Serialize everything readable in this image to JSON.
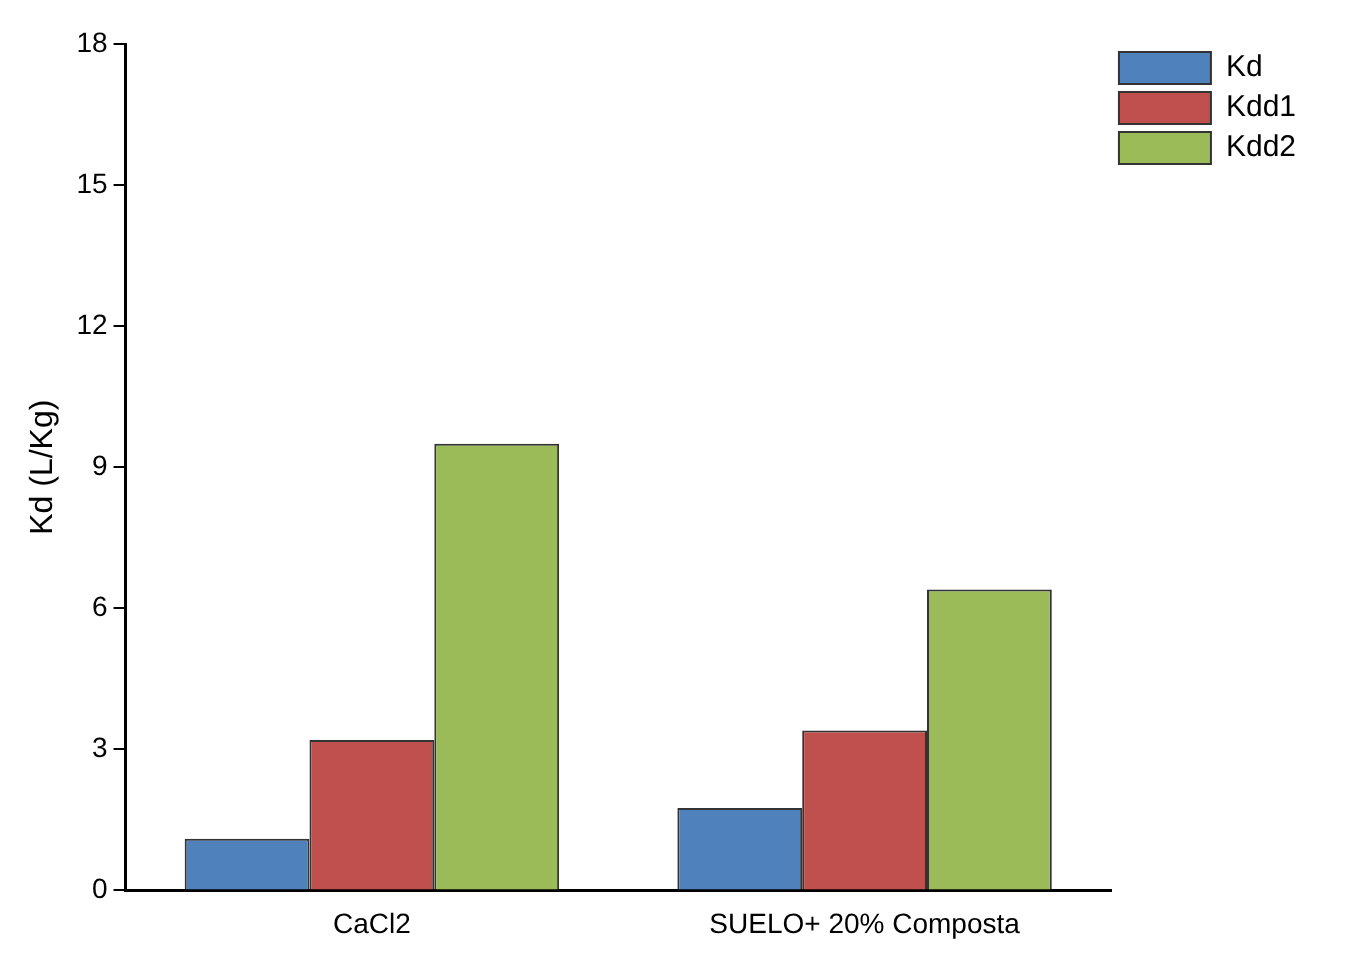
{
  "chart_data": {
    "type": "bar",
    "ylabel": "Kd (L/Kg)",
    "categories": [
      "CaCl2",
      "SUELO+ 20% Composta"
    ],
    "series": [
      {
        "name": "Kd",
        "color": "#4f81bd",
        "values": [
          1.1,
          1.75
        ]
      },
      {
        "name": "Kdd1",
        "color": "#c0504d",
        "values": [
          3.2,
          3.4
        ]
      },
      {
        "name": "Kdd2",
        "color": "#9bbb59",
        "values": [
          9.5,
          6.4
        ]
      }
    ],
    "ylim": [
      0,
      18
    ],
    "yticks": [
      0,
      3,
      6,
      9,
      12,
      15,
      18
    ],
    "grid": false,
    "legend": "top right"
  }
}
